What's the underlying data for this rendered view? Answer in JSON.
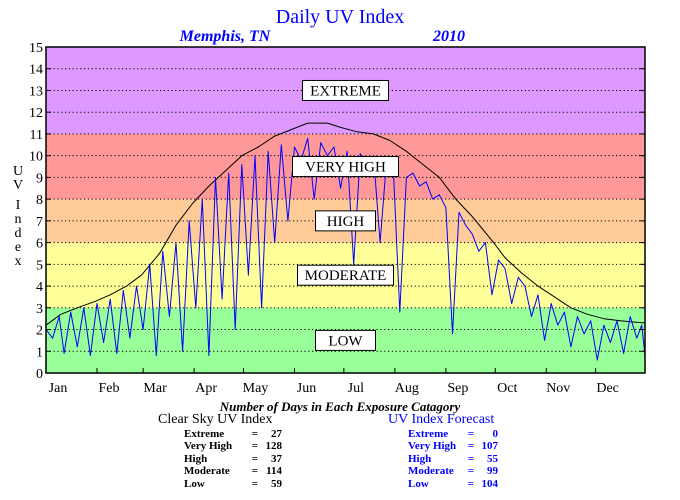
{
  "chart_data": {
    "type": "line",
    "title": "Daily UV Index",
    "subtitle_location": "Memphis, TN",
    "subtitle_year": "2010",
    "ylabel": "UV Index",
    "ylim": [
      0,
      15
    ],
    "yticks": [
      "0",
      "1",
      "2",
      "3",
      "4",
      "5",
      "6",
      "7",
      "8",
      "9",
      "10",
      "11",
      "12",
      "13",
      "14",
      "15"
    ],
    "xlim": [
      1,
      365
    ],
    "month_labels": [
      "Jan",
      "Feb",
      "Mar",
      "Apr",
      "May",
      "Jun",
      "Jul",
      "Aug",
      "Sep",
      "Oct",
      "Nov",
      "Dec"
    ],
    "grid": true,
    "bands": [
      {
        "label": "LOW",
        "from": 0,
        "to": 3,
        "color": "#99ff99"
      },
      {
        "label": "MODERATE",
        "from": 3,
        "to": 6,
        "color": "#ffff99"
      },
      {
        "label": "HIGH",
        "from": 6,
        "to": 8,
        "color": "#ffcc99"
      },
      {
        "label": "VERY HIGH",
        "from": 8,
        "to": 11,
        "color": "#ff9999"
      },
      {
        "label": "EXTREME",
        "from": 11,
        "to": 15,
        "color": "#dd99ff"
      }
    ],
    "series": [
      {
        "name": "Clear Sky UV Index",
        "color": "#000000",
        "points": [
          [
            1,
            2.2
          ],
          [
            10,
            2.7
          ],
          [
            20,
            3.0
          ],
          [
            31,
            3.3
          ],
          [
            40,
            3.6
          ],
          [
            50,
            4.0
          ],
          [
            59,
            4.5
          ],
          [
            70,
            5.5
          ],
          [
            80,
            6.8
          ],
          [
            90,
            7.8
          ],
          [
            100,
            8.6
          ],
          [
            110,
            9.3
          ],
          [
            120,
            10.0
          ],
          [
            130,
            10.4
          ],
          [
            140,
            10.9
          ],
          [
            150,
            11.2
          ],
          [
            160,
            11.5
          ],
          [
            172,
            11.5
          ],
          [
            180,
            11.3
          ],
          [
            190,
            11.1
          ],
          [
            200,
            11.0
          ],
          [
            210,
            10.7
          ],
          [
            220,
            10.2
          ],
          [
            230,
            9.6
          ],
          [
            240,
            9.0
          ],
          [
            250,
            8.0
          ],
          [
            260,
            7.2
          ],
          [
            273,
            6.0
          ],
          [
            280,
            5.3
          ],
          [
            290,
            4.6
          ],
          [
            300,
            4.0
          ],
          [
            310,
            3.5
          ],
          [
            320,
            3.0
          ],
          [
            330,
            2.7
          ],
          [
            340,
            2.5
          ],
          [
            350,
            2.4
          ],
          [
            365,
            2.3
          ]
        ]
      },
      {
        "name": "UV Index Forecast",
        "color": "#0000ff",
        "points": [
          [
            1,
            2.0
          ],
          [
            5,
            1.6
          ],
          [
            9,
            2.6
          ],
          [
            12,
            0.9
          ],
          [
            16,
            2.8
          ],
          [
            20,
            1.2
          ],
          [
            24,
            3.0
          ],
          [
            28,
            0.8
          ],
          [
            32,
            3.2
          ],
          [
            36,
            1.4
          ],
          [
            40,
            3.4
          ],
          [
            44,
            0.9
          ],
          [
            48,
            3.8
          ],
          [
            52,
            1.6
          ],
          [
            56,
            4.0
          ],
          [
            60,
            2.0
          ],
          [
            64,
            5.0
          ],
          [
            68,
            0.8
          ],
          [
            72,
            5.6
          ],
          [
            76,
            2.6
          ],
          [
            80,
            6.0
          ],
          [
            84,
            1.0
          ],
          [
            88,
            7.0
          ],
          [
            92,
            3.0
          ],
          [
            96,
            8.0
          ],
          [
            100,
            0.8
          ],
          [
            104,
            9.0
          ],
          [
            108,
            3.4
          ],
          [
            112,
            9.2
          ],
          [
            116,
            2.0
          ],
          [
            120,
            9.6
          ],
          [
            124,
            4.5
          ],
          [
            128,
            10.0
          ],
          [
            132,
            3.0
          ],
          [
            136,
            10.2
          ],
          [
            140,
            6.0
          ],
          [
            144,
            10.5
          ],
          [
            148,
            7.0
          ],
          [
            152,
            10.4
          ],
          [
            156,
            9.8
          ],
          [
            160,
            10.8
          ],
          [
            164,
            8.0
          ],
          [
            168,
            10.6
          ],
          [
            172,
            10.0
          ],
          [
            176,
            10.4
          ],
          [
            180,
            8.5
          ],
          [
            184,
            10.2
          ],
          [
            188,
            5.0
          ],
          [
            192,
            10.1
          ],
          [
            196,
            9.2
          ],
          [
            200,
            10.0
          ],
          [
            204,
            6.0
          ],
          [
            208,
            9.8
          ],
          [
            212,
            9.5
          ],
          [
            216,
            2.8
          ],
          [
            220,
            9.0
          ],
          [
            224,
            9.2
          ],
          [
            228,
            8.6
          ],
          [
            232,
            8.8
          ],
          [
            236,
            8.0
          ],
          [
            240,
            8.2
          ],
          [
            244,
            7.6
          ],
          [
            248,
            1.8
          ],
          [
            252,
            7.4
          ],
          [
            256,
            6.8
          ],
          [
            260,
            6.4
          ],
          [
            264,
            5.6
          ],
          [
            268,
            6.0
          ],
          [
            272,
            3.6
          ],
          [
            276,
            5.2
          ],
          [
            280,
            4.8
          ],
          [
            284,
            3.2
          ],
          [
            288,
            4.4
          ],
          [
            292,
            4.0
          ],
          [
            296,
            2.6
          ],
          [
            300,
            3.6
          ],
          [
            304,
            1.5
          ],
          [
            308,
            3.2
          ],
          [
            312,
            2.2
          ],
          [
            316,
            2.8
          ],
          [
            320,
            1.2
          ],
          [
            324,
            2.6
          ],
          [
            328,
            1.8
          ],
          [
            332,
            2.4
          ],
          [
            336,
            0.6
          ],
          [
            340,
            2.2
          ],
          [
            344,
            1.4
          ],
          [
            348,
            2.4
          ],
          [
            352,
            0.9
          ],
          [
            356,
            2.6
          ],
          [
            360,
            1.6
          ],
          [
            363,
            2.2
          ],
          [
            365,
            0.8
          ]
        ]
      }
    ],
    "counts_caption": "Number of Days in Each Exposure Catagory",
    "counts": {
      "clear_sky": {
        "title": "Clear Sky UV Index",
        "rows": [
          {
            "label": "Extreme",
            "eq": "=",
            "value": "27"
          },
          {
            "label": "Very High",
            "eq": "=",
            "value": "128"
          },
          {
            "label": "High",
            "eq": "=",
            "value": "37"
          },
          {
            "label": "Moderate",
            "eq": "=",
            "value": "114"
          },
          {
            "label": "Low",
            "eq": "=",
            "value": "59"
          }
        ]
      },
      "forecast": {
        "title": "UV Index Forecast",
        "rows": [
          {
            "label": "Extreme",
            "eq": "=",
            "value": "0"
          },
          {
            "label": "Very High",
            "eq": "=",
            "value": "107"
          },
          {
            "label": "High",
            "eq": "=",
            "value": "55"
          },
          {
            "label": "Moderate",
            "eq": "=",
            "value": "99"
          },
          {
            "label": "Low",
            "eq": "=",
            "value": "104"
          }
        ]
      }
    }
  }
}
